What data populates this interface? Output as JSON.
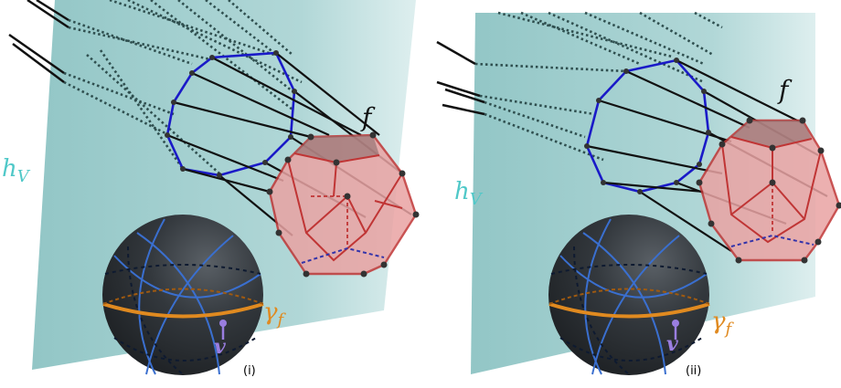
{
  "panels": [
    {
      "id": "i",
      "sublabel": "(i)",
      "plane_label": "h",
      "plane_subscript": "V",
      "face_label": "f",
      "curve_label": "γ",
      "curve_subscript": "f",
      "vector_label": "v"
    },
    {
      "id": "ii",
      "sublabel": "(ii)",
      "plane_label": "h",
      "plane_subscript": "V",
      "face_label": "f",
      "curve_label": "γ",
      "curve_subscript": "f",
      "vector_label": "v"
    }
  ],
  "colors": {
    "plane": "#a3d0d0",
    "label_plane": "#4fc8c8",
    "projection_outline": "#1a1ac8",
    "dodecahedron_fill": "#e9a3a3",
    "dodecahedron_edge": "#c03535",
    "hidden_edge_back": "#3333aa",
    "ray": "#111111",
    "ray_dotted": "#3a5a5a",
    "sphere_dark": "#2b2f33",
    "sphere_grid": "#3a6fcf",
    "equator": "#e08a20",
    "vector": "#9a7ee0"
  }
}
